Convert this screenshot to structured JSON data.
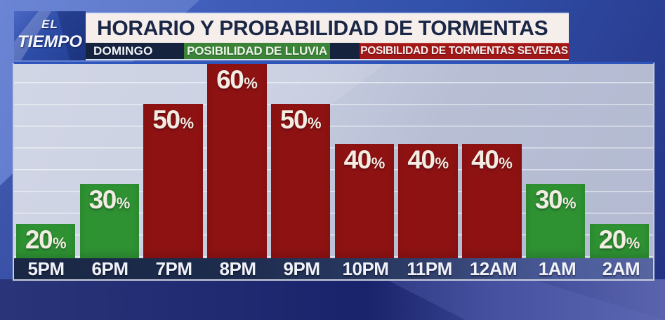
{
  "logo": {
    "top": "EL",
    "bottom": "TIEMPO"
  },
  "header": {
    "title": "HORARIO Y PROBABILIDAD DE TORMENTAS"
  },
  "legend": {
    "day_label": "DOMINGO",
    "rain_label": "POSIBILIDAD DE LLUVIA",
    "severe_label": "POSIBILIDAD DE TORMENTAS SEVERAS"
  },
  "colors": {
    "rain_green": "#2e9132",
    "severe_red": "#8e1212",
    "legend_green": "#3a8337",
    "legend_red": "#a31717",
    "navy": "#16233f",
    "bar_label_text": "#f2ece2",
    "title_text": "#1b2746",
    "title_background": "#f5eeea"
  },
  "chart_data": {
    "type": "bar",
    "title": "HORARIO Y PROBABILIDAD DE TORMENTAS",
    "subtitle": "DOMINGO",
    "categories": [
      "5PM",
      "6PM",
      "7PM",
      "8PM",
      "9PM",
      "10PM",
      "11PM",
      "12AM",
      "1AM",
      "2AM"
    ],
    "values": [
      20,
      30,
      50,
      60,
      50,
      40,
      40,
      40,
      30,
      20
    ],
    "unit": "%",
    "bar_types": [
      "rain",
      "rain",
      "severe",
      "severe",
      "severe",
      "severe",
      "severe",
      "severe",
      "rain",
      "rain"
    ],
    "series": [
      {
        "name": "POSIBILIDAD DE LLUVIA",
        "color": "#2e9132"
      },
      {
        "name": "POSIBILIDAD DE TORMENTAS SEVERAS",
        "color": "#8e1212"
      }
    ],
    "ylim": [
      0,
      62
    ],
    "grid": "horizontal",
    "legend_position": "top"
  }
}
